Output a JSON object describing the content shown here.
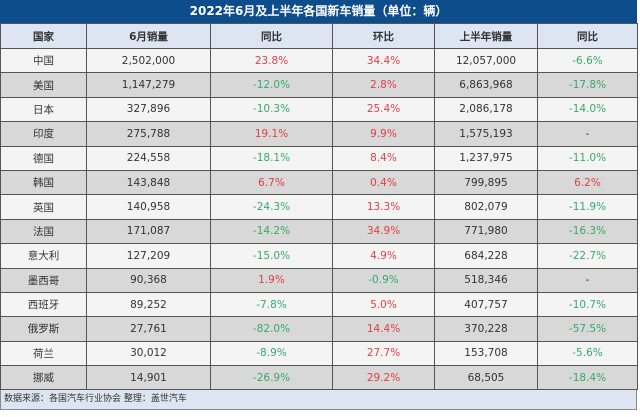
{
  "title": "2022年6月及上半年各国新车销量（单位：辆）",
  "columns": [
    "国家",
    "6月销量",
    "同比",
    "环比",
    "上半年销量",
    "同比"
  ],
  "rows": [
    [
      "中国",
      "2,502,000",
      "23.8%",
      "34.4%",
      "12,057,000",
      "-6.6%"
    ],
    [
      "美国",
      "1,147,279",
      "-12.0%",
      "2.8%",
      "6,863,968",
      "-17.8%"
    ],
    [
      "日本",
      "327,896",
      "-10.3%",
      "25.4%",
      "2,086,178",
      "-14.0%"
    ],
    [
      "印度",
      "275,788",
      "19.1%",
      "9.9%",
      "1,575,193",
      "-"
    ],
    [
      "德国",
      "224,558",
      "-18.1%",
      "8.4%",
      "1,237,975",
      "-11.0%"
    ],
    [
      "韩国",
      "143,848",
      "6.7%",
      "0.4%",
      "799,895",
      "6.2%"
    ],
    [
      "英国",
      "140,958",
      "-24.3%",
      "13.3%",
      "802,079",
      "-11.9%"
    ],
    [
      "法国",
      "171,087",
      "-14.2%",
      "34.9%",
      "771,980",
      "-16.3%"
    ],
    [
      "意大利",
      "127,209",
      "-15.0%",
      "4.9%",
      "684,228",
      "-22.7%"
    ],
    [
      "墨西哥",
      "90,368",
      "1.9%",
      "-0.9%",
      "518,346",
      "-"
    ],
    [
      "西班牙",
      "89,252",
      "-7.8%",
      "5.0%",
      "407,757",
      "-10.7%"
    ],
    [
      "俄罗斯",
      "27,761",
      "-82.0%",
      "14.4%",
      "370,228",
      "-57.5%"
    ],
    [
      "荷兰",
      "30,012",
      "-8.9%",
      "27.7%",
      "153,708",
      "-5.6%"
    ],
    [
      "挪威",
      "14,901",
      "-26.9%",
      "29.2%",
      "68,505",
      "-18.4%"
    ]
  ],
  "footer": "数据来源：各国汽车行业协会 整理：盖世汽车",
  "colors": {
    "header_bar": "#0d4d8c",
    "positive": "#e0404a",
    "negative": "#3aa870"
  }
}
